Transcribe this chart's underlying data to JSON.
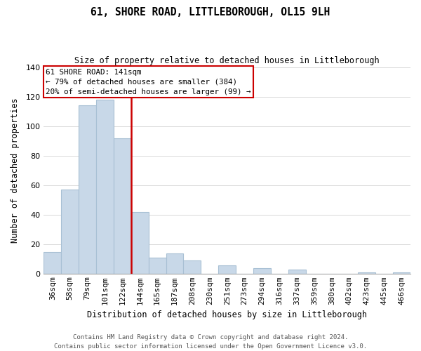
{
  "title": "61, SHORE ROAD, LITTLEBOROUGH, OL15 9LH",
  "subtitle": "Size of property relative to detached houses in Littleborough",
  "xlabel": "Distribution of detached houses by size in Littleborough",
  "ylabel": "Number of detached properties",
  "footer_line1": "Contains HM Land Registry data © Crown copyright and database right 2024.",
  "footer_line2": "Contains public sector information licensed under the Open Government Licence v3.0.",
  "categories": [
    "36sqm",
    "58sqm",
    "79sqm",
    "101sqm",
    "122sqm",
    "144sqm",
    "165sqm",
    "187sqm",
    "208sqm",
    "230sqm",
    "251sqm",
    "273sqm",
    "294sqm",
    "316sqm",
    "337sqm",
    "359sqm",
    "380sqm",
    "402sqm",
    "423sqm",
    "445sqm",
    "466sqm"
  ],
  "values": [
    15,
    57,
    114,
    118,
    92,
    42,
    11,
    14,
    9,
    0,
    6,
    0,
    4,
    0,
    3,
    0,
    0,
    0,
    1,
    0,
    1
  ],
  "bar_color": "#c8d8e8",
  "bar_edge_color": "#a8c0d4",
  "property_line_color": "#cc0000",
  "annotation_text_line1": "61 SHORE ROAD: 141sqm",
  "annotation_text_line2": "← 79% of detached houses are smaller (384)",
  "annotation_text_line3": "20% of semi-detached houses are larger (99) →",
  "annotation_box_color": "#ffffff",
  "annotation_box_edge_color": "#cc0000",
  "ylim": [
    0,
    140
  ],
  "yticks": [
    0,
    20,
    40,
    60,
    80,
    100,
    120,
    140
  ],
  "background_color": "#ffffff",
  "grid_color": "#d8d8d8",
  "title_fontsize": 10.5,
  "subtitle_fontsize": 8.5,
  "xlabel_fontsize": 8.5,
  "ylabel_fontsize": 8.5,
  "tick_fontsize": 8.0,
  "footer_fontsize": 6.5
}
